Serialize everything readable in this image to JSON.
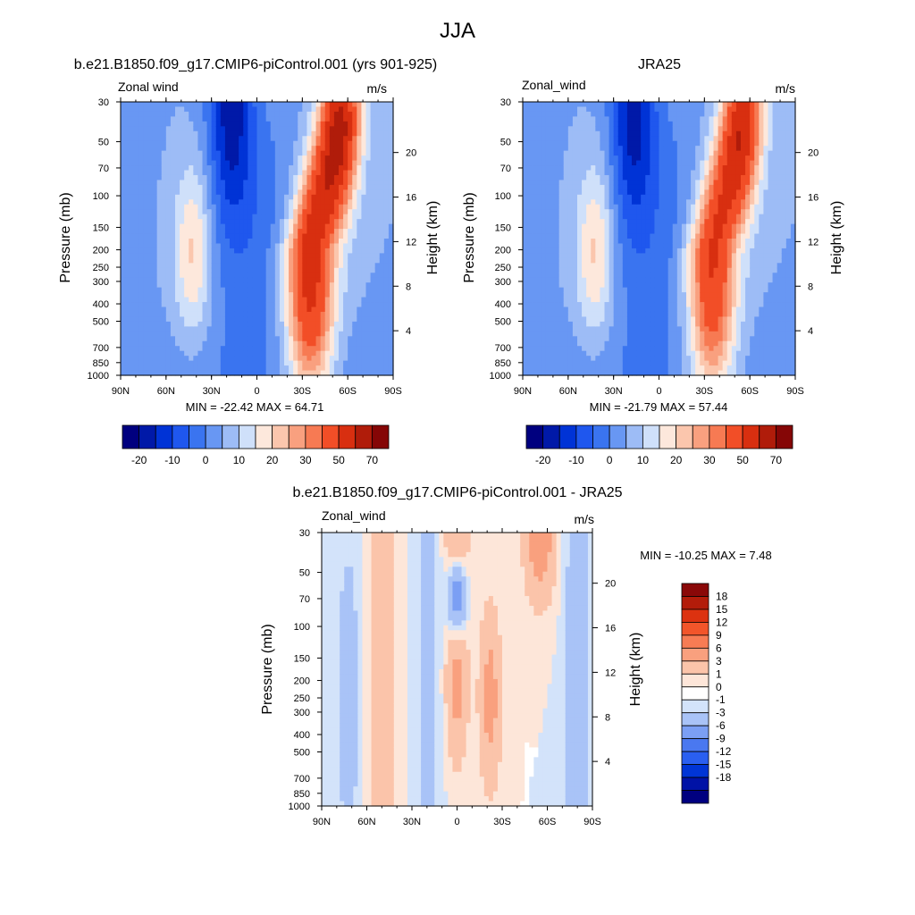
{
  "figure": {
    "title": "JJA"
  },
  "colors": {
    "full_scale": [
      "#00007f",
      "#0019a8",
      "#0033d6",
      "#1f57ee",
      "#3a74f0",
      "#6897f3",
      "#9dbcf6",
      "#cfe0fa",
      "#fde8dc",
      "#fbc6ad",
      "#f9a07f",
      "#f77a53",
      "#f24e27",
      "#d82f10",
      "#b01c0a",
      "#850606"
    ],
    "diff_scale": [
      "#000080",
      "#0012a6",
      "#0035d6",
      "#2a5ff0",
      "#4a78f0",
      "#7b9ff4",
      "#a9c3f7",
      "#d3e3fa",
      "#ffffff",
      "#fde6d9",
      "#fbc4aa",
      "#f9a07e",
      "#f77c54",
      "#f2552a",
      "#dc3210",
      "#b31c0a",
      "#8a0808"
    ]
  },
  "chart_data": [
    {
      "type": "heatmap",
      "title": "b.e21.B1850.f09_g17.CMIP6-piControl.001 (yrs 901-925)",
      "left_label": "Zonal wind",
      "right_label": "m/s",
      "ylabel": "Pressure (mb)",
      "ylabel_right": "Height (km)",
      "x_ticks": [
        "90N",
        "60N",
        "30N",
        "0",
        "30S",
        "60S",
        "90S"
      ],
      "y_ticks": [
        "30",
        "50",
        "70",
        "100",
        "150",
        "200",
        "250",
        "300",
        "400",
        "500",
        "700",
        "850",
        "1000"
      ],
      "y_ticks_right": [
        "20",
        "16",
        "12",
        "8",
        "4"
      ],
      "stats": "MIN = -22.42  MAX = 64.71",
      "colorbar_labels": [
        "-20",
        "-10",
        "0",
        "10",
        "20",
        "30",
        "50",
        "70"
      ],
      "fields": {
        "pressure_levels_mb": [
          30,
          1000
        ],
        "east_jet_lat": -50,
        "east_jet_max": 64.71,
        "west_jet_lat": 15,
        "west_jet_min": -22.42,
        "subtropical_jet_lat": 40
      }
    },
    {
      "type": "heatmap",
      "title": "JRA25",
      "left_label": "Zonal_wind",
      "right_label": "m/s",
      "ylabel": "Pressure (mb)",
      "ylabel_right": "Height (km)",
      "x_ticks": [
        "90N",
        "60N",
        "30N",
        "0",
        "30S",
        "60S",
        "90S"
      ],
      "y_ticks": [
        "30",
        "50",
        "70",
        "100",
        "150",
        "200",
        "250",
        "300",
        "400",
        "500",
        "700",
        "850",
        "1000"
      ],
      "y_ticks_right": [
        "20",
        "16",
        "12",
        "8",
        "4"
      ],
      "stats": "MIN = -21.79  MAX =  57.44",
      "colorbar_labels": [
        "-20",
        "-10",
        "0",
        "10",
        "20",
        "30",
        "50",
        "70"
      ],
      "fields": {
        "east_jet_lat": -50,
        "east_jet_max": 57.44,
        "west_jet_lat": 15,
        "west_jet_min": -21.79,
        "subtropical_jet_lat": 40
      }
    },
    {
      "type": "heatmap",
      "title": "b.e21.B1850.f09_g17.CMIP6-piControl.001 - JRA25",
      "left_label": "Zonal_wind",
      "right_label": "m/s",
      "ylabel": "Pressure (mb)",
      "ylabel_right": "Height (km)",
      "x_ticks": [
        "90N",
        "60N",
        "30N",
        "0",
        "30S",
        "60S",
        "90S"
      ],
      "y_ticks": [
        "30",
        "50",
        "70",
        "100",
        "150",
        "200",
        "250",
        "300",
        "400",
        "500",
        "700",
        "850",
        "1000"
      ],
      "y_ticks_right": [
        "20",
        "16",
        "12",
        "8",
        "4"
      ],
      "stats": "MIN = -10.25  MAX =   7.48",
      "colorbar_labels": [
        "18",
        "15",
        "12",
        "9",
        "6",
        "3",
        "1",
        "0",
        "-1",
        "-3",
        "-6",
        "-9",
        "-12",
        "-15",
        "-18"
      ]
    }
  ]
}
